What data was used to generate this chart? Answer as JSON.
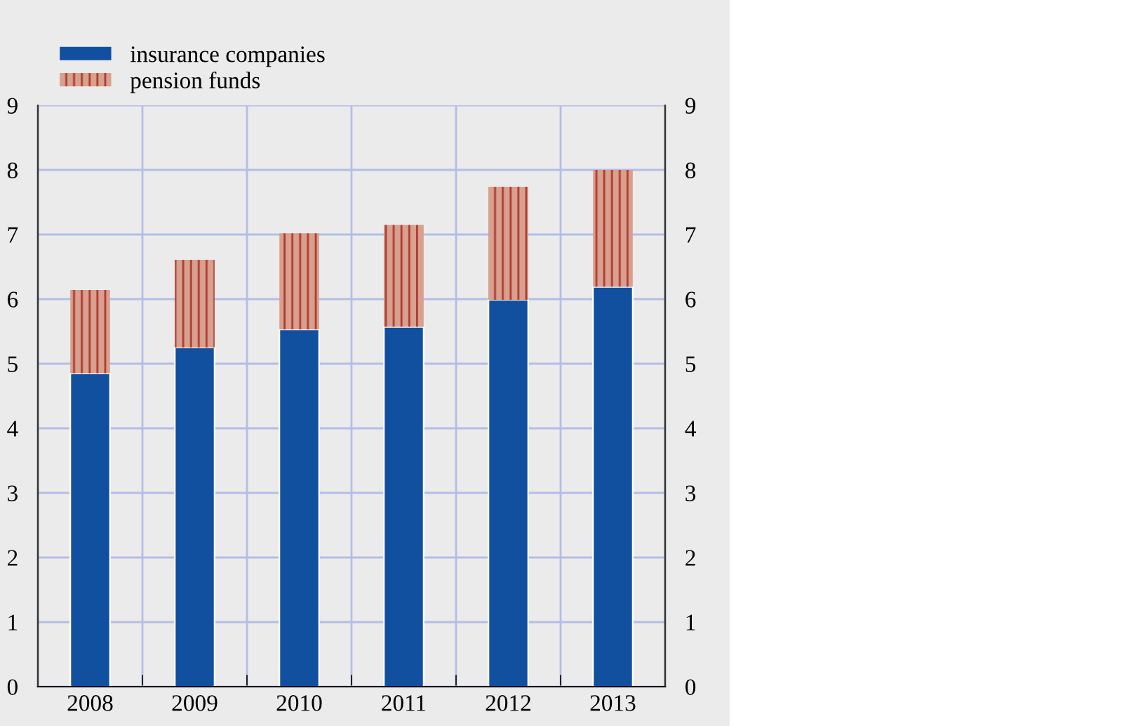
{
  "chart_data": {
    "type": "bar",
    "stacked": true,
    "categories": [
      "2008",
      "2009",
      "2010",
      "2011",
      "2012",
      "2013"
    ],
    "series": [
      {
        "name": "insurance companies",
        "color": "#114f9f",
        "values": [
          4.85,
          5.25,
          5.53,
          5.57,
          5.99,
          6.19
        ]
      },
      {
        "name": "pension funds",
        "color": "#d8a08e",
        "values": [
          1.29,
          1.36,
          1.49,
          1.58,
          1.75,
          1.81
        ]
      }
    ],
    "ylim": [
      0,
      9
    ],
    "yticks": [
      0,
      1,
      2,
      3,
      4,
      5,
      6,
      7,
      8,
      9
    ],
    "y2lim": [
      0,
      9
    ],
    "y2ticks": [
      0,
      1,
      2,
      3,
      4,
      5,
      6,
      7,
      8,
      9
    ],
    "grid": true,
    "legend": "top left"
  }
}
